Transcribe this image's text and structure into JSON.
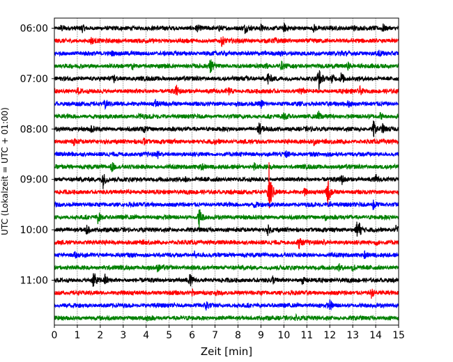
{
  "chart_data": {
    "type": "line",
    "title": "",
    "xlabel": "Zeit  [min]",
    "ylabel": "UTC (Lokalzeit = UTC + 01:00)",
    "xlim": [
      0,
      15
    ],
    "x_ticks": [
      "0",
      "1",
      "2",
      "3",
      "4",
      "5",
      "6",
      "7",
      "8",
      "9",
      "10",
      "11",
      "12",
      "13",
      "14",
      "15"
    ],
    "y_ticks": [
      "06:00",
      "07:00",
      "08:00",
      "09:00",
      "10:00",
      "11:00"
    ],
    "grid": "vertical dotted lines at each minute",
    "trace_colors": [
      "#000000",
      "#ff0000",
      "#0000ff",
      "#008000"
    ],
    "traces": [
      {
        "start": "06:00",
        "events": [
          [
            0.3,
            0.25
          ],
          [
            1.2,
            0.3
          ],
          [
            6.2,
            0.25
          ],
          [
            7.2,
            0.3
          ],
          [
            8.3,
            0.35
          ],
          [
            9.0,
            0.3
          ],
          [
            10.0,
            0.3
          ],
          [
            11.3,
            0.3
          ],
          [
            13.0,
            0.3
          ],
          [
            14.3,
            0.35
          ]
        ]
      },
      {
        "start": "06:15",
        "events": [
          [
            1.6,
            0.3
          ],
          [
            7.3,
            0.45
          ],
          [
            9.6,
            0.2
          ]
        ]
      },
      {
        "start": "06:30",
        "events": [
          [
            2.5,
            0.2
          ],
          [
            9.8,
            0.3
          ],
          [
            12.5,
            0.3
          ],
          [
            14.1,
            0.4
          ]
        ]
      },
      {
        "start": "06:45",
        "events": [
          [
            3.4,
            0.25
          ],
          [
            6.8,
            0.8
          ],
          [
            9.2,
            0.3
          ],
          [
            9.9,
            0.3
          ],
          [
            12.8,
            0.3
          ]
        ]
      },
      {
        "start": "07:00",
        "events": [
          [
            2.6,
            0.3
          ],
          [
            8.4,
            0.35
          ],
          [
            9.3,
            0.6
          ],
          [
            11.5,
            1.15
          ],
          [
            12.1,
            0.4
          ],
          [
            12.5,
            0.6
          ]
        ]
      },
      {
        "start": "07:15",
        "events": [
          [
            1.0,
            0.3
          ],
          [
            5.3,
            0.5
          ],
          [
            7.6,
            0.25
          ],
          [
            10.7,
            0.3
          ],
          [
            13.3,
            0.35
          ]
        ]
      },
      {
        "start": "07:30",
        "events": [
          [
            2.2,
            0.5
          ],
          [
            4.4,
            0.3
          ],
          [
            9.0,
            0.3
          ],
          [
            12.8,
            0.3
          ]
        ]
      },
      {
        "start": "07:45",
        "events": [
          [
            3.7,
            0.25
          ],
          [
            10.0,
            0.3
          ],
          [
            11.5,
            0.4
          ],
          [
            14.2,
            0.3
          ]
        ]
      },
      {
        "start": "08:00",
        "events": [
          [
            1.6,
            0.3
          ],
          [
            3.9,
            0.25
          ],
          [
            8.9,
            0.65
          ],
          [
            13.9,
            0.75
          ],
          [
            14.3,
            0.35
          ]
        ]
      },
      {
        "start": "08:15",
        "events": [
          [
            0.8,
            0.4
          ],
          [
            3.9,
            0.3
          ],
          [
            7.0,
            0.25
          ],
          [
            11.3,
            0.3
          ]
        ]
      },
      {
        "start": "08:30",
        "events": [
          [
            4.5,
            0.3
          ],
          [
            10.1,
            0.25
          ]
        ]
      },
      {
        "start": "08:45",
        "events": [
          [
            2.5,
            0.45
          ],
          [
            6.4,
            0.3
          ],
          [
            8.7,
            0.3
          ]
        ]
      },
      {
        "start": "09:00",
        "events": [
          [
            2.1,
            0.9
          ],
          [
            5.7,
            0.3
          ],
          [
            12.5,
            0.5
          ],
          [
            14.0,
            0.3
          ]
        ]
      },
      {
        "start": "09:15",
        "events": [
          [
            9.35,
            2.6
          ],
          [
            11.9,
            1.35
          ],
          [
            10.9,
            0.3
          ],
          [
            3.2,
            0.2
          ]
        ]
      },
      {
        "start": "09:30",
        "events": [
          [
            8.7,
            0.3
          ],
          [
            12.0,
            0.25
          ],
          [
            13.9,
            0.6
          ]
        ]
      },
      {
        "start": "09:45",
        "events": [
          [
            1.9,
            0.5
          ],
          [
            6.3,
            1.0
          ],
          [
            11.8,
            0.25
          ]
        ]
      },
      {
        "start": "10:00",
        "events": [
          [
            1.4,
            0.4
          ],
          [
            9.3,
            0.4
          ],
          [
            13.2,
            1.45
          ],
          [
            14.9,
            0.5
          ]
        ]
      },
      {
        "start": "10:15",
        "events": [
          [
            10.65,
            0.6
          ],
          [
            11.7,
            0.3
          ],
          [
            14.0,
            0.25
          ]
        ]
      },
      {
        "start": "10:30",
        "events": [
          [
            0.9,
            0.25
          ],
          [
            6.1,
            0.3
          ],
          [
            13.5,
            0.3
          ]
        ]
      },
      {
        "start": "10:45",
        "events": [
          [
            4.5,
            0.25
          ],
          [
            13.0,
            0.4
          ],
          [
            12.4,
            0.25
          ]
        ]
      },
      {
        "start": "11:00",
        "events": [
          [
            1.7,
            0.85
          ],
          [
            2.2,
            0.45
          ],
          [
            5.9,
            0.5
          ],
          [
            9.5,
            0.3
          ],
          [
            10.8,
            0.3
          ]
        ]
      },
      {
        "start": "11:15",
        "events": [
          [
            6.0,
            0.3
          ],
          [
            13.8,
            0.45
          ]
        ]
      },
      {
        "start": "11:30",
        "events": [
          [
            6.6,
            0.5
          ],
          [
            12.0,
            0.35
          ]
        ]
      },
      {
        "start": "11:45",
        "events": [
          [
            4.0,
            0.25
          ],
          [
            10.5,
            0.25
          ]
        ]
      }
    ]
  }
}
